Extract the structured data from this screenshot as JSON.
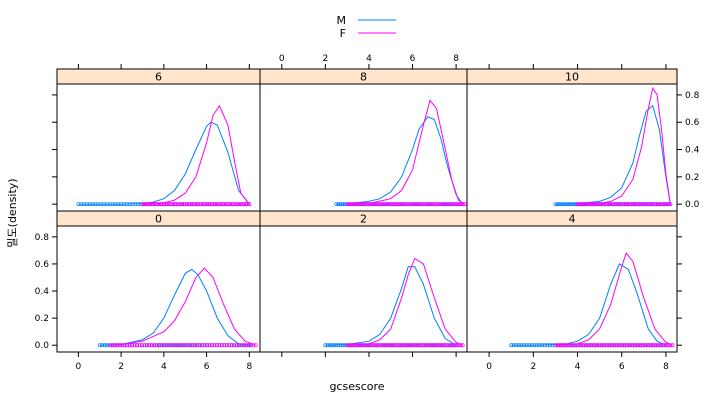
{
  "chart_data": {
    "type": "line",
    "subtype": "lattice density plot (6 panels, 2 groups each, rug of observations)",
    "xlabel": "gcsescore",
    "ylabel": "밀도(density)",
    "x_ticks": [
      0,
      2,
      4,
      6,
      8
    ],
    "y_ticks": [
      0.0,
      0.2,
      0.4,
      0.6,
      0.8
    ],
    "xlim": [
      -1,
      8.5
    ],
    "ylim": [
      -0.05,
      0.88
    ],
    "legend": {
      "placement": "top-center",
      "entries": [
        {
          "name": "M",
          "color": "#0080ff"
        },
        {
          "name": "F",
          "color": "#ff00ff"
        }
      ]
    },
    "panels": [
      {
        "strip": "6",
        "series": [
          {
            "name": "M",
            "color": "#0080ff",
            "x": [
              0,
              1,
              2,
              3,
              3.5,
              4,
              4.5,
              5,
              5.5,
              6,
              6.2,
              6.5,
              7,
              7.5,
              8
            ],
            "y": [
              0.0,
              0.0,
              0.0,
              0.005,
              0.015,
              0.04,
              0.1,
              0.22,
              0.4,
              0.57,
              0.6,
              0.58,
              0.38,
              0.1,
              0.0
            ]
          },
          {
            "name": "F",
            "color": "#ff00ff",
            "x": [
              3,
              4,
              4.5,
              5,
              5.5,
              6,
              6.3,
              6.6,
              7,
              7.3,
              7.6,
              8
            ],
            "y": [
              0.0,
              0.01,
              0.03,
              0.08,
              0.2,
              0.45,
              0.65,
              0.72,
              0.58,
              0.32,
              0.08,
              0.0
            ]
          }
        ]
      },
      {
        "strip": "8",
        "series": [
          {
            "name": "M",
            "color": "#0080ff",
            "x": [
              2.5,
              3,
              4,
              4.5,
              5,
              5.5,
              6,
              6.3,
              6.7,
              7,
              7.3,
              7.6,
              8,
              8.3
            ],
            "y": [
              0.0,
              0.003,
              0.02,
              0.04,
              0.09,
              0.2,
              0.4,
              0.55,
              0.64,
              0.62,
              0.48,
              0.28,
              0.07,
              0.0
            ]
          },
          {
            "name": "F",
            "color": "#ff00ff",
            "x": [
              3,
              4,
              5,
              5.5,
              6,
              6.5,
              6.8,
              7.1,
              7.4,
              7.8,
              8.1,
              8.4
            ],
            "y": [
              0.0,
              0.005,
              0.04,
              0.1,
              0.25,
              0.58,
              0.76,
              0.7,
              0.48,
              0.18,
              0.03,
              0.0
            ]
          }
        ]
      },
      {
        "strip": "10",
        "series": [
          {
            "name": "M",
            "color": "#0080ff",
            "x": [
              3,
              4,
              5,
              5.5,
              6,
              6.5,
              6.8,
              7.1,
              7.4,
              7.7,
              8,
              8.2
            ],
            "y": [
              0.0,
              0.005,
              0.02,
              0.05,
              0.12,
              0.3,
              0.5,
              0.68,
              0.72,
              0.55,
              0.2,
              0.0
            ]
          },
          {
            "name": "F",
            "color": "#ff00ff",
            "x": [
              4,
              5,
              5.5,
              6,
              6.5,
              6.9,
              7.2,
              7.4,
              7.6,
              7.8,
              8,
              8.2
            ],
            "y": [
              0.0,
              0.005,
              0.02,
              0.06,
              0.18,
              0.42,
              0.7,
              0.85,
              0.8,
              0.55,
              0.22,
              0.0
            ]
          }
        ]
      },
      {
        "strip": "0",
        "series": [
          {
            "name": "M",
            "color": "#0080ff",
            "x": [
              1,
              2,
              3,
              3.5,
              4,
              4.5,
              5,
              5.3,
              5.6,
              6,
              6.5,
              7,
              7.5,
              8
            ],
            "y": [
              0.0,
              0.005,
              0.04,
              0.09,
              0.2,
              0.37,
              0.53,
              0.56,
              0.52,
              0.4,
              0.2,
              0.07,
              0.01,
              0.0
            ]
          },
          {
            "name": "F",
            "color": "#ff00ff",
            "x": [
              1.5,
              2,
              3,
              4,
              4.5,
              5,
              5.5,
              5.9,
              6.3,
              6.8,
              7.3,
              7.8,
              8.3
            ],
            "y": [
              0.0,
              0.003,
              0.03,
              0.1,
              0.18,
              0.32,
              0.5,
              0.57,
              0.5,
              0.3,
              0.12,
              0.03,
              0.0
            ]
          }
        ]
      },
      {
        "strip": "2",
        "series": [
          {
            "name": "M",
            "color": "#0080ff",
            "x": [
              2,
              3,
              4,
              4.5,
              5,
              5.5,
              5.8,
              6.1,
              6.5,
              7,
              7.5,
              8
            ],
            "y": [
              0.0,
              0.005,
              0.03,
              0.08,
              0.2,
              0.42,
              0.58,
              0.58,
              0.45,
              0.2,
              0.05,
              0.0
            ]
          },
          {
            "name": "F",
            "color": "#ff00ff",
            "x": [
              3,
              4,
              4.5,
              5,
              5.5,
              5.8,
              6.1,
              6.5,
              7,
              7.5,
              8,
              8.3
            ],
            "y": [
              0.0,
              0.01,
              0.04,
              0.12,
              0.35,
              0.52,
              0.64,
              0.6,
              0.35,
              0.12,
              0.02,
              0.0
            ]
          }
        ]
      },
      {
        "strip": "4",
        "series": [
          {
            "name": "M",
            "color": "#0080ff",
            "x": [
              1,
              2,
              3,
              3.5,
              4,
              4.5,
              5,
              5.5,
              5.9,
              6.3,
              6.7,
              7.2,
              7.6,
              8
            ],
            "y": [
              0.0,
              0.0,
              0.005,
              0.01,
              0.03,
              0.08,
              0.2,
              0.45,
              0.6,
              0.56,
              0.38,
              0.12,
              0.03,
              0.0
            ]
          },
          {
            "name": "F",
            "color": "#ff00ff",
            "x": [
              3,
              4,
              4.5,
              5,
              5.5,
              6,
              6.2,
              6.5,
              7,
              7.5,
              8,
              8.3
            ],
            "y": [
              0.0,
              0.01,
              0.04,
              0.12,
              0.3,
              0.58,
              0.68,
              0.62,
              0.35,
              0.12,
              0.02,
              0.0
            ]
          }
        ]
      }
    ]
  }
}
